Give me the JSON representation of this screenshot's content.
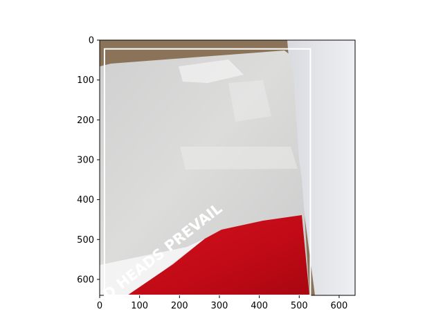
{
  "figure": {
    "type": "image-with-bounding-box",
    "image_extent": {
      "xlim": [
        0,
        640
      ],
      "ylim": [
        640,
        0
      ]
    },
    "x_ticks": [
      0,
      100,
      200,
      300,
      400,
      500,
      600
    ],
    "y_ticks": [
      0,
      100,
      200,
      300,
      400,
      500,
      600
    ],
    "bounding_box": {
      "x1": 12,
      "y1": 22,
      "x2": 528,
      "y2": 640,
      "color": "#ffffff"
    }
  },
  "photo": {
    "description_text": "D HEADS PREVAIL",
    "colors": {
      "cardboard": "#8a7358",
      "white_paper": "#e9eaee",
      "box_gray": "#d7d8d7",
      "box_red": "#c10a16",
      "box_white_strip": "#f3f3f4"
    }
  }
}
